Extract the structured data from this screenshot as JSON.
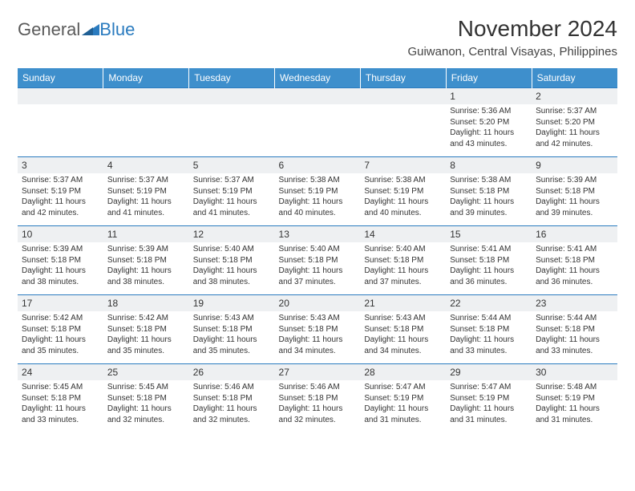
{
  "brand": {
    "part1": "General",
    "part2": "Blue"
  },
  "title": "November 2024",
  "location": "Guiwanon, Central Visayas, Philippines",
  "colors": {
    "header_bg": "#3e8fcc",
    "header_text": "#ffffff",
    "border": "#2a7bbf",
    "shade": "#eef0f2",
    "text": "#333333"
  },
  "dayNames": [
    "Sunday",
    "Monday",
    "Tuesday",
    "Wednesday",
    "Thursday",
    "Friday",
    "Saturday"
  ],
  "weeks": [
    [
      null,
      null,
      null,
      null,
      null,
      {
        "n": "1",
        "sr": "Sunrise: 5:36 AM",
        "ss": "Sunset: 5:20 PM",
        "dl": "Daylight: 11 hours and 43 minutes."
      },
      {
        "n": "2",
        "sr": "Sunrise: 5:37 AM",
        "ss": "Sunset: 5:20 PM",
        "dl": "Daylight: 11 hours and 42 minutes."
      }
    ],
    [
      {
        "n": "3",
        "sr": "Sunrise: 5:37 AM",
        "ss": "Sunset: 5:19 PM",
        "dl": "Daylight: 11 hours and 42 minutes."
      },
      {
        "n": "4",
        "sr": "Sunrise: 5:37 AM",
        "ss": "Sunset: 5:19 PM",
        "dl": "Daylight: 11 hours and 41 minutes."
      },
      {
        "n": "5",
        "sr": "Sunrise: 5:37 AM",
        "ss": "Sunset: 5:19 PM",
        "dl": "Daylight: 11 hours and 41 minutes."
      },
      {
        "n": "6",
        "sr": "Sunrise: 5:38 AM",
        "ss": "Sunset: 5:19 PM",
        "dl": "Daylight: 11 hours and 40 minutes."
      },
      {
        "n": "7",
        "sr": "Sunrise: 5:38 AM",
        "ss": "Sunset: 5:19 PM",
        "dl": "Daylight: 11 hours and 40 minutes."
      },
      {
        "n": "8",
        "sr": "Sunrise: 5:38 AM",
        "ss": "Sunset: 5:18 PM",
        "dl": "Daylight: 11 hours and 39 minutes."
      },
      {
        "n": "9",
        "sr": "Sunrise: 5:39 AM",
        "ss": "Sunset: 5:18 PM",
        "dl": "Daylight: 11 hours and 39 minutes."
      }
    ],
    [
      {
        "n": "10",
        "sr": "Sunrise: 5:39 AM",
        "ss": "Sunset: 5:18 PM",
        "dl": "Daylight: 11 hours and 38 minutes."
      },
      {
        "n": "11",
        "sr": "Sunrise: 5:39 AM",
        "ss": "Sunset: 5:18 PM",
        "dl": "Daylight: 11 hours and 38 minutes."
      },
      {
        "n": "12",
        "sr": "Sunrise: 5:40 AM",
        "ss": "Sunset: 5:18 PM",
        "dl": "Daylight: 11 hours and 38 minutes."
      },
      {
        "n": "13",
        "sr": "Sunrise: 5:40 AM",
        "ss": "Sunset: 5:18 PM",
        "dl": "Daylight: 11 hours and 37 minutes."
      },
      {
        "n": "14",
        "sr": "Sunrise: 5:40 AM",
        "ss": "Sunset: 5:18 PM",
        "dl": "Daylight: 11 hours and 37 minutes."
      },
      {
        "n": "15",
        "sr": "Sunrise: 5:41 AM",
        "ss": "Sunset: 5:18 PM",
        "dl": "Daylight: 11 hours and 36 minutes."
      },
      {
        "n": "16",
        "sr": "Sunrise: 5:41 AM",
        "ss": "Sunset: 5:18 PM",
        "dl": "Daylight: 11 hours and 36 minutes."
      }
    ],
    [
      {
        "n": "17",
        "sr": "Sunrise: 5:42 AM",
        "ss": "Sunset: 5:18 PM",
        "dl": "Daylight: 11 hours and 35 minutes."
      },
      {
        "n": "18",
        "sr": "Sunrise: 5:42 AM",
        "ss": "Sunset: 5:18 PM",
        "dl": "Daylight: 11 hours and 35 minutes."
      },
      {
        "n": "19",
        "sr": "Sunrise: 5:43 AM",
        "ss": "Sunset: 5:18 PM",
        "dl": "Daylight: 11 hours and 35 minutes."
      },
      {
        "n": "20",
        "sr": "Sunrise: 5:43 AM",
        "ss": "Sunset: 5:18 PM",
        "dl": "Daylight: 11 hours and 34 minutes."
      },
      {
        "n": "21",
        "sr": "Sunrise: 5:43 AM",
        "ss": "Sunset: 5:18 PM",
        "dl": "Daylight: 11 hours and 34 minutes."
      },
      {
        "n": "22",
        "sr": "Sunrise: 5:44 AM",
        "ss": "Sunset: 5:18 PM",
        "dl": "Daylight: 11 hours and 33 minutes."
      },
      {
        "n": "23",
        "sr": "Sunrise: 5:44 AM",
        "ss": "Sunset: 5:18 PM",
        "dl": "Daylight: 11 hours and 33 minutes."
      }
    ],
    [
      {
        "n": "24",
        "sr": "Sunrise: 5:45 AM",
        "ss": "Sunset: 5:18 PM",
        "dl": "Daylight: 11 hours and 33 minutes."
      },
      {
        "n": "25",
        "sr": "Sunrise: 5:45 AM",
        "ss": "Sunset: 5:18 PM",
        "dl": "Daylight: 11 hours and 32 minutes."
      },
      {
        "n": "26",
        "sr": "Sunrise: 5:46 AM",
        "ss": "Sunset: 5:18 PM",
        "dl": "Daylight: 11 hours and 32 minutes."
      },
      {
        "n": "27",
        "sr": "Sunrise: 5:46 AM",
        "ss": "Sunset: 5:18 PM",
        "dl": "Daylight: 11 hours and 32 minutes."
      },
      {
        "n": "28",
        "sr": "Sunrise: 5:47 AM",
        "ss": "Sunset: 5:19 PM",
        "dl": "Daylight: 11 hours and 31 minutes."
      },
      {
        "n": "29",
        "sr": "Sunrise: 5:47 AM",
        "ss": "Sunset: 5:19 PM",
        "dl": "Daylight: 11 hours and 31 minutes."
      },
      {
        "n": "30",
        "sr": "Sunrise: 5:48 AM",
        "ss": "Sunset: 5:19 PM",
        "dl": "Daylight: 11 hours and 31 minutes."
      }
    ]
  ]
}
